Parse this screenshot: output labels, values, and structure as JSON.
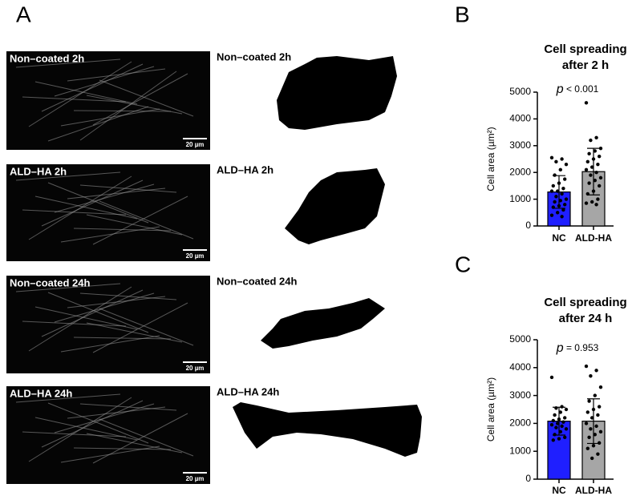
{
  "panel_labels": [
    "A",
    "B",
    "C"
  ],
  "images": [
    {
      "label": "Non–coated 2h",
      "scale_bar": "20 µm",
      "mask_label": "Non–coated 2h"
    },
    {
      "label": "ALD–HA 2h",
      "scale_bar": "20 µm",
      "mask_label": "ALD–HA 2h"
    },
    {
      "label": "Non–coated 24h",
      "scale_bar": "20 µm",
      "mask_label": "Non–coated 24h"
    },
    {
      "label": "ALD–HA 24h",
      "scale_bar": "20 µm",
      "mask_label": "ALD–HA 24h"
    }
  ],
  "chart_data": [
    {
      "type": "bar",
      "title": [
        "Cell spreading",
        "after 2 h"
      ],
      "annotation": {
        "symbol": "p",
        "text": "< 0.001"
      },
      "y_label": "Cell area (µm²)",
      "categories": [
        "NC",
        "ALD-HA"
      ],
      "values": [
        1270,
        2030
      ],
      "errors": [
        610,
        870
      ],
      "colors": [
        "#1f1fff",
        "#a6a6a6"
      ],
      "ylim": [
        0,
        5000
      ],
      "yticks": [
        0,
        1000,
        2000,
        3000,
        4000,
        5000
      ],
      "points": [
        [
          2550,
          2500,
          2400,
          2300,
          2100,
          1900,
          1750,
          1600,
          1500,
          1400,
          1300,
          1300,
          1200,
          1100,
          1000,
          950,
          900,
          800,
          750,
          700,
          600,
          500,
          400,
          350
        ],
        [
          4600,
          3300,
          3200,
          2900,
          2800,
          2700,
          2600,
          2500,
          2400,
          2300,
          2200,
          2100,
          2000,
          1900,
          1800,
          1700,
          1600,
          1500,
          1300,
          1200,
          1000,
          900,
          850,
          800
        ]
      ]
    },
    {
      "type": "bar",
      "title": [
        "Cell spreading",
        "after 24 h"
      ],
      "annotation": {
        "symbol": "p",
        "text": "= 0.953"
      },
      "y_label": "Cell area (µm²)",
      "categories": [
        "NC",
        "ALD-HA"
      ],
      "values": [
        2080,
        2080
      ],
      "errors": [
        500,
        800
      ],
      "colors": [
        "#1f1fff",
        "#a6a6a6"
      ],
      "ylim": [
        0,
        5000
      ],
      "yticks": [
        0,
        1000,
        2000,
        3000,
        4000,
        5000
      ],
      "points": [
        [
          3650,
          2600,
          2550,
          2500,
          2400,
          2300,
          2200,
          2150,
          2100,
          2050,
          2000,
          1950,
          1900,
          1850,
          1800,
          1700,
          1600,
          1500,
          1450,
          1400
        ],
        [
          4050,
          3900,
          3700,
          3300,
          3000,
          2800,
          2600,
          2500,
          2400,
          2300,
          2200,
          2000,
          1900,
          1800,
          1700,
          1600,
          1500,
          1300,
          1200,
          1100,
          900,
          750
        ]
      ]
    }
  ]
}
